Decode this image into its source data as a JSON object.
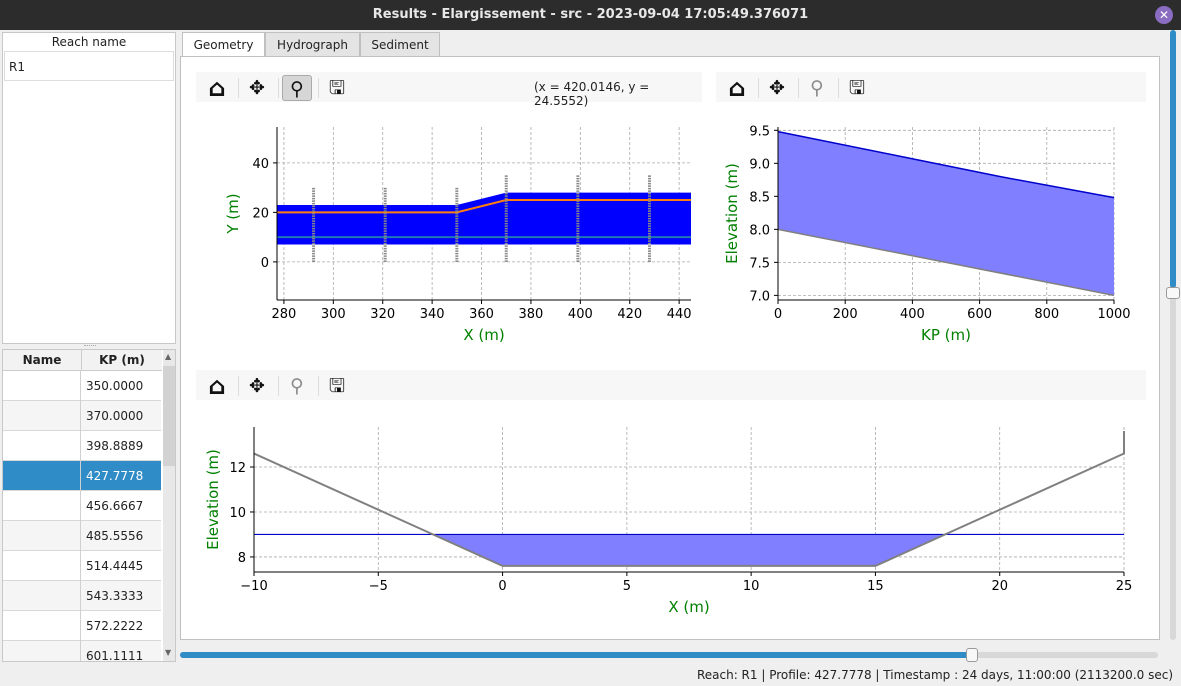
{
  "window": {
    "title": "Results - Elargissement - src - 2023-09-04 17:05:49.376071",
    "close_icon": "close-icon"
  },
  "reach_list": {
    "header": "Reach name",
    "items": [
      "R1"
    ]
  },
  "profile_table": {
    "headers": [
      "Name",
      "KP (m)"
    ],
    "rows": [
      {
        "name": "",
        "kp": "350.0000"
      },
      {
        "name": "",
        "kp": "370.0000"
      },
      {
        "name": "",
        "kp": "398.8889"
      },
      {
        "name": "",
        "kp": "427.7778",
        "selected": true
      },
      {
        "name": "",
        "kp": "456.6667"
      },
      {
        "name": "",
        "kp": "485.5556"
      },
      {
        "name": "",
        "kp": "514.4445"
      },
      {
        "name": "",
        "kp": "543.3333"
      },
      {
        "name": "",
        "kp": "572.2222"
      },
      {
        "name": "",
        "kp": "601.1111"
      }
    ]
  },
  "tabs": [
    {
      "label": "Geometry",
      "active": true
    },
    {
      "label": "Hydrograph"
    },
    {
      "label": "Sediment"
    }
  ],
  "toolbar": {
    "icons": [
      "home-icon",
      "pan-icon",
      "zoom-icon",
      "save-icon"
    ],
    "coords": "(x = 420.0146,   y = 24.5552)"
  },
  "colors": {
    "selection": "#308cc6",
    "water_fill": "#0000ff",
    "water_fill_light": "#7f7fff",
    "water_line": "#0000cc",
    "axis_label": "#008000",
    "bed": "#808080",
    "orange": "#ff7f0e",
    "teal": "#1f77b4"
  },
  "status": "Reach: R1 | Profile: 427.7778 | Timestamp : 24 days, 11:00:00 (2113200.0 sec)",
  "timestamp_slider": {
    "value_fraction": 0.81
  },
  "chart_data": [
    {
      "type": "area",
      "xlabel": "X (m)",
      "ylabel": "Y (m)",
      "xlim": [
        277.2,
        444.8
      ],
      "ylim": [
        -15.4,
        54.5
      ],
      "xticks": [
        280,
        300,
        320,
        340,
        360,
        380,
        400,
        420,
        440
      ],
      "yticks": [
        0,
        20,
        40
      ],
      "grid": true,
      "water_polygon": [
        [
          277.2,
          7
        ],
        [
          444.8,
          7
        ],
        [
          444.8,
          28
        ],
        [
          370,
          28
        ],
        [
          350,
          23
        ],
        [
          277.2,
          23
        ]
      ],
      "thalweg_line": [
        [
          277.2,
          20
        ],
        [
          350,
          20
        ],
        [
          370,
          25
        ],
        [
          444.8,
          25
        ]
      ],
      "axis_line": [
        [
          277.2,
          10
        ],
        [
          444.8,
          10
        ]
      ],
      "profiles": [
        {
          "x": 292,
          "ymin": 0,
          "ymax": 30
        },
        {
          "x": 321,
          "ymin": 0,
          "ymax": 30
        },
        {
          "x": 350,
          "ymin": 0,
          "ymax": 30
        },
        {
          "x": 370,
          "ymin": 0,
          "ymax": 35
        },
        {
          "x": 399,
          "ymin": 0,
          "ymax": 35
        },
        {
          "x": 428,
          "ymin": 0,
          "ymax": 35
        }
      ]
    },
    {
      "type": "area",
      "xlabel": "KP (m)",
      "ylabel": "Elevation (m)",
      "xlim": [
        0,
        1000
      ],
      "ylim": [
        6.93,
        9.55
      ],
      "xticks": [
        0,
        200,
        400,
        600,
        800,
        1000
      ],
      "yticks": [
        7.0,
        7.5,
        8.0,
        8.5,
        9.0,
        9.5
      ],
      "ytick_labels": [
        "7.0",
        "7.5",
        "8.0",
        "8.5",
        "9.0",
        "9.5"
      ],
      "grid": true,
      "water": [
        [
          0,
          9.48
        ],
        [
          370,
          9.1
        ],
        [
          660,
          8.8
        ],
        [
          1000,
          8.48
        ]
      ],
      "bed": [
        [
          0,
          8.0
        ],
        [
          1000,
          7.0
        ]
      ]
    },
    {
      "type": "area",
      "xlabel": "X (m)",
      "ylabel": "Elevation (m)",
      "xlim": [
        -10,
        25
      ],
      "ylim": [
        7.33,
        13.78
      ],
      "xticks": [
        -10,
        -5,
        0,
        5,
        10,
        15,
        20,
        25
      ],
      "xtick_labels": [
        "−10",
        "−5",
        "0",
        "5",
        "10",
        "15",
        "20",
        "25"
      ],
      "yticks": [
        8,
        10,
        12
      ],
      "grid": true,
      "bed": [
        [
          -10,
          12.6
        ],
        [
          0,
          7.6
        ],
        [
          15,
          7.6
        ],
        [
          25,
          12.6
        ],
        [
          25,
          13.6
        ]
      ],
      "water_level": 9.0
    }
  ]
}
